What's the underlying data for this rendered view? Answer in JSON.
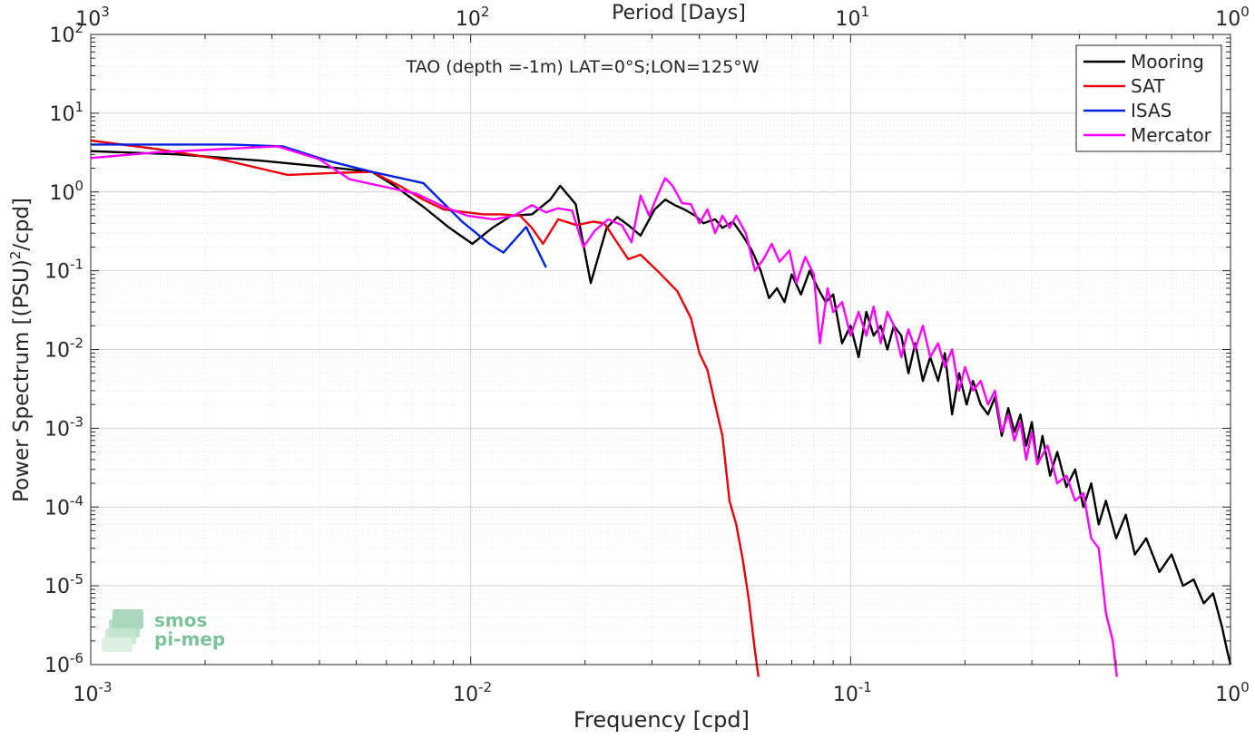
{
  "chart_data": {
    "type": "line",
    "title": "TAO (depth =-1m) LAT=0°S;LON=125°W",
    "xlabel": "Frequency [cpd]",
    "ylabel_main": "Power Spectrum [(PSU)",
    "ylabel_sup": "2",
    "ylabel_tail": "/cpd]",
    "top_xlabel": "Period [Days]",
    "xscale": "log",
    "yscale": "log",
    "xlim": [
      0.001,
      1
    ],
    "ylim": [
      1e-06,
      100
    ],
    "grid": true,
    "legend_position": "top-right",
    "x_ticks": [
      {
        "base": "10",
        "exp": "-3"
      },
      {
        "base": "10",
        "exp": "-2"
      },
      {
        "base": "10",
        "exp": "-1"
      },
      {
        "base": "10",
        "exp": "0"
      }
    ],
    "top_ticks": [
      {
        "base": "10",
        "exp": "3"
      },
      {
        "base": "10",
        "exp": "2"
      },
      {
        "base": "10",
        "exp": "1"
      },
      {
        "base": "10",
        "exp": "0"
      }
    ],
    "y_ticks": [
      {
        "base": "10",
        "exp": "-6"
      },
      {
        "base": "10",
        "exp": "-5"
      },
      {
        "base": "10",
        "exp": "-4"
      },
      {
        "base": "10",
        "exp": "-3"
      },
      {
        "base": "10",
        "exp": "-2"
      },
      {
        "base": "10",
        "exp": "-1"
      },
      {
        "base": "10",
        "exp": "0"
      },
      {
        "base": "10",
        "exp": "1"
      },
      {
        "base": "10",
        "exp": "2"
      }
    ],
    "series": [
      {
        "name": "Mooring",
        "color": "#000000",
        "points": [
          [
            0.001,
            3.3
          ],
          [
            0.0017,
            3.0
          ],
          [
            0.0028,
            2.5
          ],
          [
            0.0045,
            2.0
          ],
          [
            0.0055,
            1.8
          ],
          [
            0.0063,
            1.2
          ],
          [
            0.0075,
            0.65
          ],
          [
            0.0088,
            0.35
          ],
          [
            0.0101,
            0.22
          ],
          [
            0.0114,
            0.35
          ],
          [
            0.0128,
            0.5
          ],
          [
            0.0145,
            0.52
          ],
          [
            0.0162,
            0.8
          ],
          [
            0.0172,
            1.2
          ],
          [
            0.0189,
            0.7
          ],
          [
            0.0207,
            0.07
          ],
          [
            0.0228,
            0.35
          ],
          [
            0.0243,
            0.48
          ],
          [
            0.026,
            0.38
          ],
          [
            0.028,
            0.28
          ],
          [
            0.0305,
            0.6
          ],
          [
            0.0325,
            0.8
          ],
          [
            0.0345,
            0.68
          ],
          [
            0.0365,
            0.6
          ],
          [
            0.039,
            0.5
          ],
          [
            0.041,
            0.4
          ],
          [
            0.044,
            0.45
          ],
          [
            0.046,
            0.35
          ],
          [
            0.049,
            0.42
          ],
          [
            0.052,
            0.28
          ],
          [
            0.055,
            0.18
          ],
          [
            0.058,
            0.1
          ],
          [
            0.061,
            0.045
          ],
          [
            0.064,
            0.06
          ],
          [
            0.067,
            0.04
          ],
          [
            0.07,
            0.09
          ],
          [
            0.074,
            0.05
          ],
          [
            0.078,
            0.1
          ],
          [
            0.082,
            0.06
          ],
          [
            0.086,
            0.04
          ],
          [
            0.09,
            0.05
          ],
          [
            0.095,
            0.012
          ],
          [
            0.1,
            0.02
          ],
          [
            0.105,
            0.008
          ],
          [
            0.11,
            0.03
          ],
          [
            0.115,
            0.015
          ],
          [
            0.12,
            0.02
          ],
          [
            0.125,
            0.01
          ],
          [
            0.13,
            0.02
          ],
          [
            0.136,
            0.015
          ],
          [
            0.142,
            0.005
          ],
          [
            0.148,
            0.012
          ],
          [
            0.155,
            0.004
          ],
          [
            0.162,
            0.008
          ],
          [
            0.17,
            0.004
          ],
          [
            0.177,
            0.009
          ],
          [
            0.185,
            0.0015
          ],
          [
            0.193,
            0.005
          ],
          [
            0.202,
            0.002
          ],
          [
            0.21,
            0.004
          ],
          [
            0.22,
            0.002
          ],
          [
            0.23,
            0.0015
          ],
          [
            0.24,
            0.0025
          ],
          [
            0.25,
            0.0008
          ],
          [
            0.26,
            0.0018
          ],
          [
            0.27,
            0.0009
          ],
          [
            0.28,
            0.0015
          ],
          [
            0.29,
            0.0006
          ],
          [
            0.3,
            0.0012
          ],
          [
            0.31,
            0.00035
          ],
          [
            0.32,
            0.0008
          ],
          [
            0.335,
            0.00025
          ],
          [
            0.35,
            0.0005
          ],
          [
            0.37,
            0.00018
          ],
          [
            0.39,
            0.0003
          ],
          [
            0.41,
            0.0001
          ],
          [
            0.43,
            0.0002
          ],
          [
            0.45,
            6e-05
          ],
          [
            0.47,
            0.00012
          ],
          [
            0.5,
            4e-05
          ],
          [
            0.53,
            8e-05
          ],
          [
            0.56,
            2.5e-05
          ],
          [
            0.6,
            4e-05
          ],
          [
            0.65,
            1.5e-05
          ],
          [
            0.7,
            2.5e-05
          ],
          [
            0.75,
            1e-05
          ],
          [
            0.8,
            1.2e-05
          ],
          [
            0.85,
            6e-06
          ],
          [
            0.9,
            8e-06
          ],
          [
            0.95,
            3e-06
          ],
          [
            0.98,
            1.5e-06
          ],
          [
            1.0,
            1e-06
          ]
        ]
      },
      {
        "name": "SAT",
        "color": "#e8000b",
        "points": [
          [
            0.001,
            4.5
          ],
          [
            0.0015,
            3.5
          ],
          [
            0.0022,
            2.6
          ],
          [
            0.0033,
            1.65
          ],
          [
            0.0045,
            1.75
          ],
          [
            0.0055,
            1.8
          ],
          [
            0.0065,
            1.2
          ],
          [
            0.0075,
            0.8
          ],
          [
            0.0085,
            0.6
          ],
          [
            0.0098,
            0.55
          ],
          [
            0.0108,
            0.52
          ],
          [
            0.012,
            0.52
          ],
          [
            0.0135,
            0.5
          ],
          [
            0.0145,
            0.35
          ],
          [
            0.0155,
            0.22
          ],
          [
            0.017,
            0.45
          ],
          [
            0.019,
            0.38
          ],
          [
            0.021,
            0.42
          ],
          [
            0.0225,
            0.4
          ],
          [
            0.024,
            0.25
          ],
          [
            0.026,
            0.14
          ],
          [
            0.028,
            0.16
          ],
          [
            0.031,
            0.1
          ],
          [
            0.035,
            0.055
          ],
          [
            0.038,
            0.025
          ],
          [
            0.04,
            0.009
          ],
          [
            0.042,
            0.0055
          ],
          [
            0.044,
            0.002
          ],
          [
            0.046,
            0.0008
          ],
          [
            0.048,
            0.00012
          ],
          [
            0.05,
            6e-05
          ],
          [
            0.052,
            2.2e-05
          ],
          [
            0.054,
            6.5e-06
          ],
          [
            0.056,
            1.5e-06
          ],
          [
            0.0572,
            7e-07
          ]
        ]
      },
      {
        "name": "ISAS",
        "color": "#0022dd",
        "points": [
          [
            0.001,
            4.0
          ],
          [
            0.0015,
            4.0
          ],
          [
            0.0023,
            4.0
          ],
          [
            0.0032,
            3.8
          ],
          [
            0.0042,
            2.5
          ],
          [
            0.0055,
            1.8
          ],
          [
            0.0075,
            1.3
          ],
          [
            0.0095,
            0.42
          ],
          [
            0.0112,
            0.22
          ],
          [
            0.0122,
            0.17
          ],
          [
            0.014,
            0.36
          ],
          [
            0.0158,
            0.11
          ]
        ]
      },
      {
        "name": "Mercator",
        "color": "#ff00ff",
        "points": [
          [
            0.001,
            2.7
          ],
          [
            0.0015,
            3.2
          ],
          [
            0.0022,
            3.5
          ],
          [
            0.0031,
            3.8
          ],
          [
            0.004,
            2.6
          ],
          [
            0.0048,
            1.45
          ],
          [
            0.006,
            1.15
          ],
          [
            0.0072,
            0.95
          ],
          [
            0.0085,
            0.65
          ],
          [
            0.0098,
            0.5
          ],
          [
            0.0115,
            0.45
          ],
          [
            0.013,
            0.5
          ],
          [
            0.0145,
            0.68
          ],
          [
            0.0158,
            0.55
          ],
          [
            0.017,
            0.62
          ],
          [
            0.0185,
            0.58
          ],
          [
            0.0198,
            0.2
          ],
          [
            0.0212,
            0.32
          ],
          [
            0.023,
            0.45
          ],
          [
            0.025,
            0.38
          ],
          [
            0.0265,
            0.23
          ],
          [
            0.028,
            0.9
          ],
          [
            0.0295,
            0.5
          ],
          [
            0.031,
            0.9
          ],
          [
            0.0325,
            1.5
          ],
          [
            0.034,
            1.2
          ],
          [
            0.036,
            0.72
          ],
          [
            0.038,
            0.7
          ],
          [
            0.04,
            0.4
          ],
          [
            0.042,
            0.6
          ],
          [
            0.044,
            0.3
          ],
          [
            0.046,
            0.5
          ],
          [
            0.048,
            0.35
          ],
          [
            0.05,
            0.5
          ],
          [
            0.053,
            0.3
          ],
          [
            0.056,
            0.1
          ],
          [
            0.059,
            0.14
          ],
          [
            0.062,
            0.22
          ],
          [
            0.065,
            0.13
          ],
          [
            0.069,
            0.18
          ],
          [
            0.072,
            0.07
          ],
          [
            0.076,
            0.15
          ],
          [
            0.08,
            0.09
          ],
          [
            0.083,
            0.012
          ],
          [
            0.087,
            0.06
          ],
          [
            0.09,
            0.03
          ],
          [
            0.095,
            0.04
          ],
          [
            0.1,
            0.015
          ],
          [
            0.105,
            0.03
          ],
          [
            0.11,
            0.015
          ],
          [
            0.115,
            0.035
          ],
          [
            0.12,
            0.012
          ],
          [
            0.125,
            0.03
          ],
          [
            0.13,
            0.02
          ],
          [
            0.136,
            0.008
          ],
          [
            0.142,
            0.018
          ],
          [
            0.148,
            0.01
          ],
          [
            0.155,
            0.02
          ],
          [
            0.162,
            0.008
          ],
          [
            0.17,
            0.012
          ],
          [
            0.177,
            0.006
          ],
          [
            0.185,
            0.01
          ],
          [
            0.193,
            0.003
          ],
          [
            0.2,
            0.006
          ],
          [
            0.21,
            0.003
          ],
          [
            0.22,
            0.004
          ],
          [
            0.23,
            0.002
          ],
          [
            0.24,
            0.003
          ],
          [
            0.25,
            0.0009
          ],
          [
            0.26,
            0.0015
          ],
          [
            0.27,
            0.0007
          ],
          [
            0.28,
            0.0012
          ],
          [
            0.29,
            0.0004
          ],
          [
            0.3,
            0.0009
          ],
          [
            0.31,
            0.00035
          ],
          [
            0.33,
            0.0006
          ],
          [
            0.35,
            0.0002
          ],
          [
            0.37,
            0.00025
          ],
          [
            0.39,
            0.00012
          ],
          [
            0.41,
            0.00015
          ],
          [
            0.43,
            4e-05
          ],
          [
            0.45,
            3e-05
          ],
          [
            0.47,
            4.5e-06
          ],
          [
            0.49,
            2e-06
          ],
          [
            0.502,
            7e-07
          ]
        ]
      }
    ]
  },
  "watermark": {
    "line1": "smos",
    "line2": "pi-mep"
  }
}
